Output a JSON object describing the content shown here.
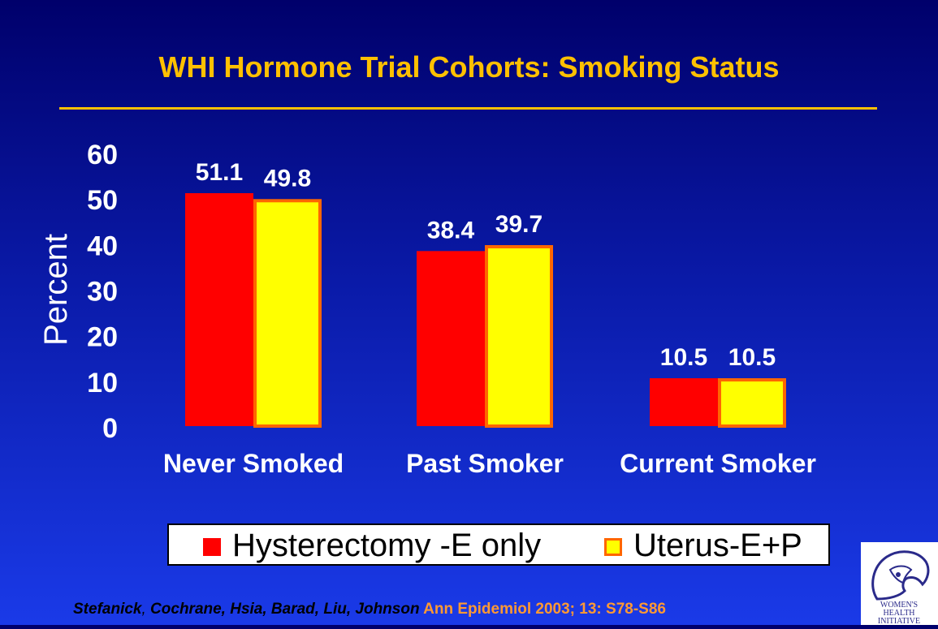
{
  "chart_data": {
    "type": "bar",
    "title": "WHI Hormone Trial Cohorts: Smoking Status",
    "ylabel": "Percent",
    "xlabel": "",
    "ylim": [
      0,
      60
    ],
    "yticks": [
      "0",
      "10",
      "20",
      "30",
      "40",
      "50",
      "60"
    ],
    "categories": [
      "Never Smoked",
      "Past Smoker",
      "Current Smoker"
    ],
    "series": [
      {
        "name": "Hysterectomy -E only",
        "values": [
          51.1,
          38.4,
          10.5
        ],
        "labels": [
          "51.1",
          "38.4",
          "10.5"
        ],
        "color": "#ff0000"
      },
      {
        "name": "Uterus-E+P",
        "values": [
          49.8,
          39.7,
          10.5
        ],
        "labels": [
          "49.8",
          "39.7",
          "10.5"
        ],
        "color": "#ffff00",
        "border": "#ff6600"
      }
    ],
    "grid": false,
    "legend": "bottom"
  },
  "citation": {
    "authors_1": "Stefanick",
    "sep": ", ",
    "authors_2": "Cochrane, Hsia, Barad, Liu, Johnson",
    "journal": " Ann Epidemiol 2003; 13: S78-S86"
  },
  "colors": {
    "title": "#ffc000",
    "background_top": "#00006b",
    "background_bottom": "#1a3ae8",
    "label_text": "#ffffff"
  },
  "logo": {
    "icon": "womens-health-initiative-logo",
    "text": "WOMEN'S HEALTH INITIATIVE"
  }
}
